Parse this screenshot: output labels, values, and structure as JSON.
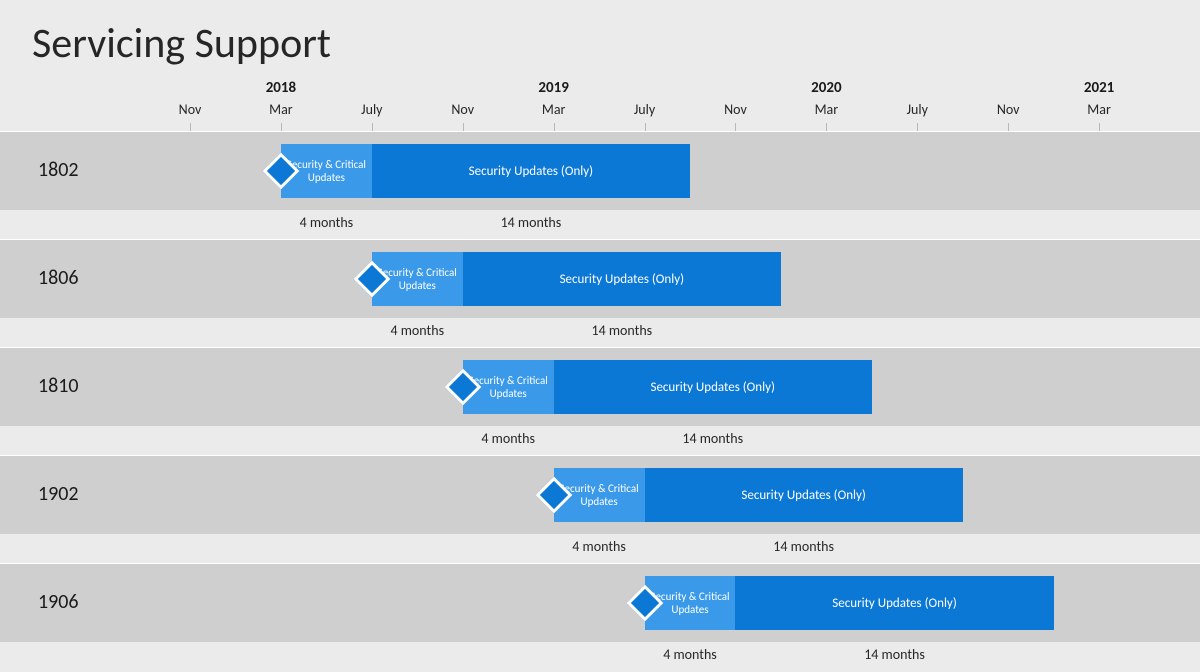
{
  "title": "Servicing Support",
  "chart": {
    "type": "gantt-timeline",
    "background_color": "#ebebeb",
    "row_band_color": "#cfcfcf",
    "grid_color": "#b8b8b8",
    "title_fontsize": 42,
    "title_color": "#262626",
    "axis": {
      "start_month_index": 0,
      "total_months": 44,
      "years": [
        {
          "label": "2018",
          "month_index": 4
        },
        {
          "label": "2019",
          "month_index": 16
        },
        {
          "label": "2020",
          "month_index": 28
        },
        {
          "label": "2021",
          "month_index": 40
        }
      ],
      "ticks": [
        {
          "label": "Nov",
          "month_index": 0
        },
        {
          "label": "Mar",
          "month_index": 4
        },
        {
          "label": "July",
          "month_index": 8
        },
        {
          "label": "Nov",
          "month_index": 12
        },
        {
          "label": "Mar",
          "month_index": 16
        },
        {
          "label": "July",
          "month_index": 20
        },
        {
          "label": "Nov",
          "month_index": 24
        },
        {
          "label": "Mar",
          "month_index": 28
        },
        {
          "label": "July",
          "month_index": 32
        },
        {
          "label": "Nov",
          "month_index": 36
        },
        {
          "label": "Mar",
          "month_index": 40
        }
      ]
    },
    "phase1_label": "Security & Critical Updates",
    "phase2_label": "Security Updates (Only)",
    "phase1_duration_label": "4 months",
    "phase2_duration_label": "14 months",
    "phase1_color": "#3a99e9",
    "phase2_color": "#0b78d5",
    "diamond_color": "#0b78d5",
    "diamond_border": "#ffffff",
    "text_on_bar_color": "#ffffff",
    "phase1_months": 4,
    "phase2_months": 14,
    "rows": [
      {
        "label": "1802",
        "start_month_index": 4
      },
      {
        "label": "1806",
        "start_month_index": 8
      },
      {
        "label": "1810",
        "start_month_index": 12
      },
      {
        "label": "1902",
        "start_month_index": 16
      },
      {
        "label": "1906",
        "start_month_index": 20
      }
    ]
  }
}
